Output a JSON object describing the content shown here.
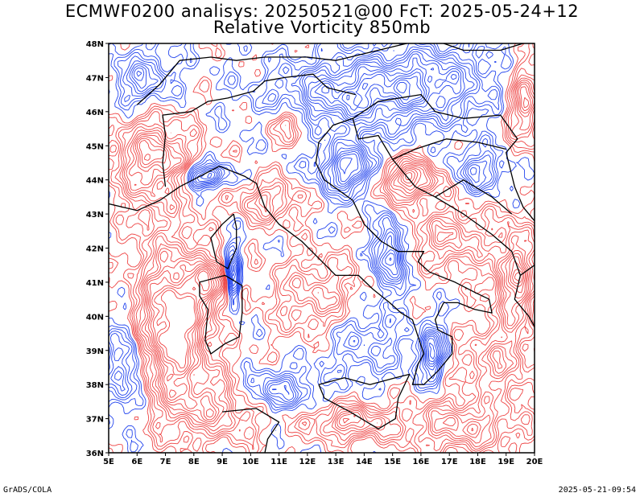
{
  "title": {
    "line1": "ECMWF0200 analisys: 20250521@00 FcT: 2025-05-24+12",
    "line2": "Relative Vorticity 850mb"
  },
  "map": {
    "lon_range": [
      5,
      20
    ],
    "lat_range": [
      36,
      48
    ],
    "lon_ticks": [
      "5E",
      "6E",
      "7E",
      "8E",
      "9E",
      "10E",
      "11E",
      "12E",
      "13E",
      "14E",
      "15E",
      "16E",
      "17E",
      "18E",
      "19E",
      "20E"
    ],
    "lat_ticks": [
      "36N",
      "37N",
      "38N",
      "39N",
      "40N",
      "41N",
      "42N",
      "43N",
      "44N",
      "45N",
      "46N",
      "47N",
      "48N"
    ],
    "colors": {
      "positive": "#ee4444",
      "negative": "#2244ee",
      "coastline": "#000000",
      "frame": "#000000"
    }
  },
  "footer": {
    "left": "GrADS/COLA",
    "right": "2025-05-21-09:54"
  }
}
